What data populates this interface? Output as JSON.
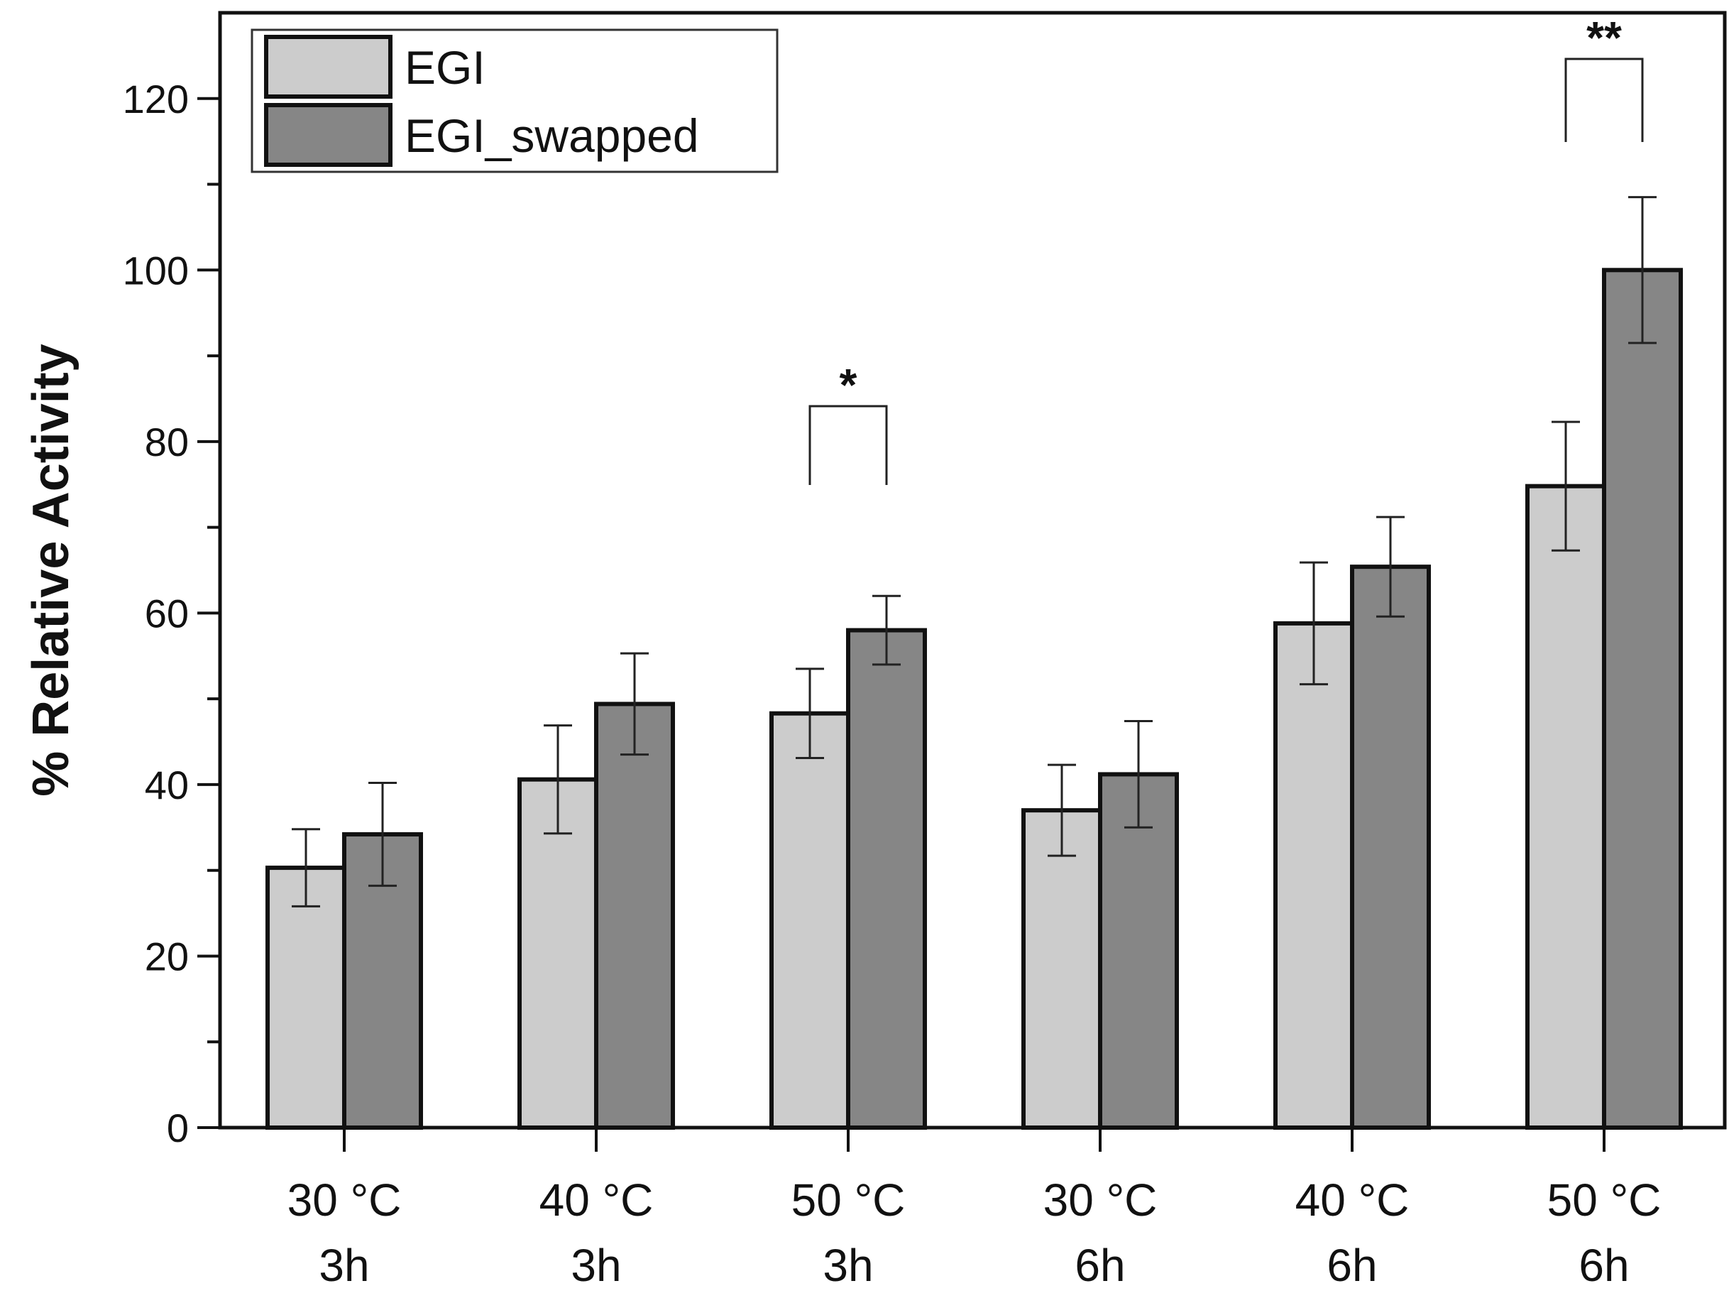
{
  "chart_data": {
    "type": "bar",
    "title": "",
    "xlabel": "",
    "ylabel": "% Relative Activity",
    "ylim": [
      0,
      130
    ],
    "yticks": [
      0,
      20,
      40,
      60,
      80,
      100,
      120
    ],
    "grid": false,
    "legend_position": "top-left",
    "categories": [
      {
        "temp": "30 °C",
        "time": "3h"
      },
      {
        "temp": "40 °C",
        "time": "3h"
      },
      {
        "temp": "50 °C",
        "time": "3h"
      },
      {
        "temp": "30 °C",
        "time": "6h"
      },
      {
        "temp": "40 °C",
        "time": "6h"
      },
      {
        "temp": "50 °C",
        "time": "6h"
      }
    ],
    "series": [
      {
        "name": "EGI",
        "color": "#cccccc",
        "values": [
          30.3,
          40.6,
          48.3,
          37.0,
          58.8,
          74.8
        ],
        "errors": [
          4.5,
          6.3,
          5.2,
          5.3,
          7.1,
          7.5
        ]
      },
      {
        "name": "EGI_swapped",
        "color": "#868686",
        "values": [
          34.2,
          49.4,
          58.0,
          41.2,
          65.4,
          100.0
        ],
        "errors": [
          6.0,
          5.9,
          4.0,
          6.2,
          5.8,
          8.5
        ]
      }
    ],
    "annotations": [
      {
        "category_index": 2,
        "label": "*"
      },
      {
        "category_index": 5,
        "label": "**"
      }
    ]
  }
}
